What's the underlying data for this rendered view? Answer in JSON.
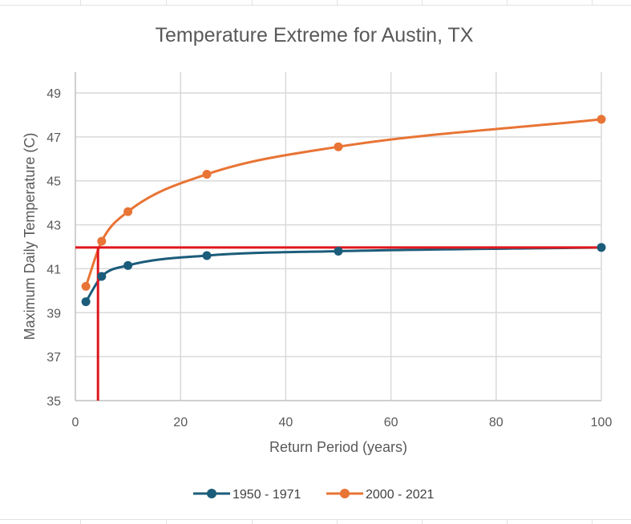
{
  "chart_data": {
    "type": "line",
    "title": "Temperature Extreme for Austin, TX",
    "xlabel": "Return Period (years)",
    "ylabel": "Maximum Daily Temperature (C)",
    "xlim": [
      0,
      100
    ],
    "ylim": [
      35,
      49
    ],
    "xticks": [
      0,
      20,
      40,
      60,
      80,
      100
    ],
    "yticks": [
      35,
      37,
      39,
      41,
      43,
      45,
      47,
      49
    ],
    "grid": true,
    "legend_position": "bottom",
    "series": [
      {
        "name": "1950 - 1971",
        "color": "#1b5c7a",
        "x": [
          2,
          5,
          10,
          25,
          50,
          100
        ],
        "y": [
          39.5,
          40.65,
          41.15,
          41.6,
          41.8,
          41.97
        ]
      },
      {
        "name": "2000 - 2021",
        "color": "#e87435",
        "x": [
          2,
          5,
          10,
          25,
          50,
          100
        ],
        "y": [
          40.2,
          42.25,
          43.6,
          45.3,
          46.55,
          47.8
        ]
      }
    ],
    "reference_lines": {
      "color": "#e0161e",
      "horizontal_y": 41.97,
      "vertical_x": 4.3
    }
  }
}
